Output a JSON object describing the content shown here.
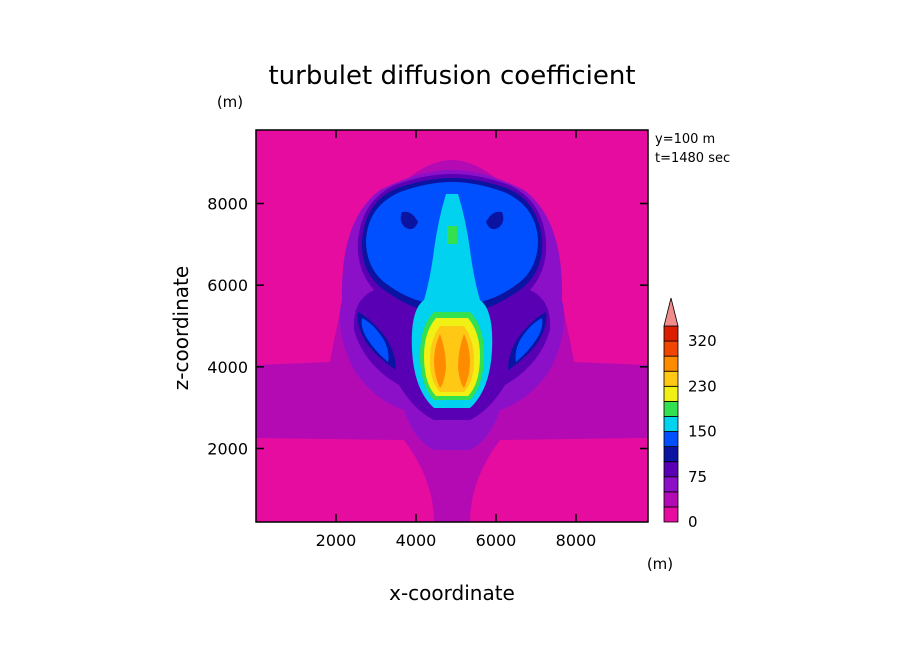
{
  "chart_data": {
    "type": "heatmap",
    "title": "turbulet diffusion coefficient",
    "xlabel": "x-coordinate",
    "ylabel": "z-coordinate",
    "x_unit": "(m)",
    "y_unit": "(m)",
    "xlim": [
      0,
      9800
    ],
    "ylim": [
      200,
      9800
    ],
    "x_ticks": [
      2000,
      4000,
      6000,
      8000
    ],
    "y_ticks": [
      2000,
      4000,
      6000,
      8000
    ],
    "annotations": [
      "y=100 m",
      "t=1480 sec"
    ],
    "colorbar": {
      "levels": [
        0,
        25,
        50,
        75,
        100,
        125,
        150,
        175,
        200,
        230,
        260,
        290,
        320
      ],
      "tick_labels": [
        "0",
        "75",
        "150",
        "230",
        "320"
      ],
      "tick_values": [
        0,
        75,
        150,
        230,
        320
      ],
      "colors": [
        "#e60ca0",
        "#b40ab4",
        "#8c10c8",
        "#5a00b4",
        "#0a14a0",
        "#0050ff",
        "#00d2f0",
        "#32e050",
        "#f0f014",
        "#ffc814",
        "#ff8c00",
        "#f04600",
        "#dc1e00"
      ],
      "extend_color": "#f08c8c"
    },
    "regions": [
      {
        "level_index": 1,
        "shape": "band",
        "note": "low values layer z 2300-4000"
      },
      {
        "level_index": 1,
        "shape": "plume",
        "note": "outer envelope of thermal"
      },
      {
        "level_index": 2,
        "shape": "cap",
        "note": "outer cap"
      },
      {
        "level_index": 3,
        "shape": "cap"
      },
      {
        "level_index": 4,
        "shape": "cap"
      },
      {
        "level_index": 5,
        "shape": "cap interior"
      },
      {
        "level_index": 6,
        "shape": "stem"
      },
      {
        "level_index": 7,
        "shape": "core"
      },
      {
        "level_index": 8,
        "shape": "core"
      },
      {
        "level_index": 9,
        "shape": "core"
      },
      {
        "level_index": 10,
        "shape": "core"
      }
    ]
  }
}
